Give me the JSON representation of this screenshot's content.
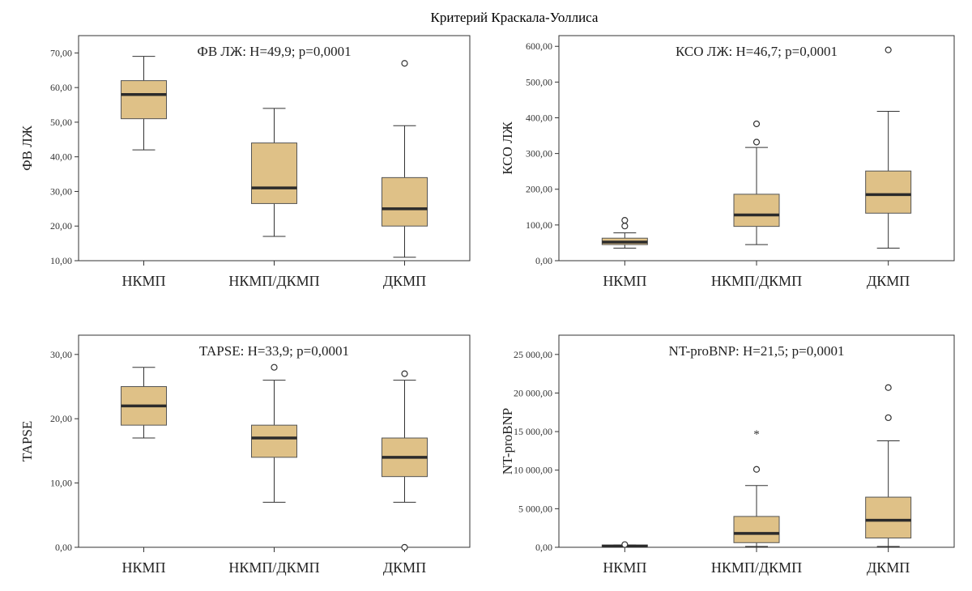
{
  "figure_title": "Критерий Краскала-Уоллиса",
  "chart_data": [
    {
      "type": "box",
      "title": "ФВ ЛЖ: H=49,9; p=0,0001",
      "ylabel": "ФВ ЛЖ",
      "xlabel": "",
      "ylim": [
        10,
        75
      ],
      "yticks": [
        10,
        20,
        30,
        40,
        50,
        60,
        70
      ],
      "ytick_labels": [
        "10,00",
        "20,00",
        "30,00",
        "40,00",
        "50,00",
        "60,00",
        "70,00"
      ],
      "categories": [
        "НКМП",
        "НКМП/ДКМП",
        "ДКМП"
      ],
      "boxes": [
        {
          "whisker_low": 42,
          "q1": 51,
          "median": 58,
          "q3": 62,
          "whisker_high": 69,
          "outliers": [],
          "extremes": []
        },
        {
          "whisker_low": 17,
          "q1": 26.5,
          "median": 31,
          "q3": 44,
          "whisker_high": 54,
          "outliers": [],
          "extremes": []
        },
        {
          "whisker_low": 11,
          "q1": 20,
          "median": 25,
          "q3": 34,
          "whisker_high": 49,
          "outliers": [
            67
          ],
          "extremes": []
        }
      ],
      "box_color": "#dfc187",
      "grid": false
    },
    {
      "type": "box",
      "title": "КСО ЛЖ: H=46,7; p=0,0001",
      "ylabel": "КСО ЛЖ",
      "xlabel": "",
      "ylim": [
        0,
        630
      ],
      "yticks": [
        0,
        100,
        200,
        300,
        400,
        500,
        600
      ],
      "ytick_labels": [
        "0,00",
        "100,00",
        "200,00",
        "300,00",
        "400,00",
        "500,00",
        "600,00"
      ],
      "categories": [
        "НКМП",
        "НКМП/ДКМП",
        "ДКМП"
      ],
      "boxes": [
        {
          "whisker_low": 35,
          "q1": 45,
          "median": 52,
          "q3": 63,
          "whisker_high": 78,
          "outliers": [
            97,
            113
          ],
          "extremes": []
        },
        {
          "whisker_low": 45,
          "q1": 96,
          "median": 128,
          "q3": 186,
          "whisker_high": 317,
          "outliers": [
            332,
            383
          ],
          "extremes": []
        },
        {
          "whisker_low": 35,
          "q1": 133,
          "median": 185,
          "q3": 251,
          "whisker_high": 418,
          "outliers": [
            590
          ],
          "extremes": []
        }
      ],
      "box_color": "#dfc187",
      "grid": false
    },
    {
      "type": "box",
      "title": "TAPSE: H=33,9; p=0,0001",
      "ylabel": "TAPSE",
      "xlabel": "",
      "ylim": [
        0,
        33
      ],
      "yticks": [
        0,
        10,
        20,
        30
      ],
      "ytick_labels": [
        "0,00",
        "10,00",
        "20,00",
        "30,00"
      ],
      "categories": [
        "НКМП",
        "НКМП/ДКМП",
        "ДКМП"
      ],
      "boxes": [
        {
          "whisker_low": 17,
          "q1": 19,
          "median": 22,
          "q3": 25,
          "whisker_high": 28,
          "outliers": [],
          "extremes": []
        },
        {
          "whisker_low": 7,
          "q1": 14,
          "median": 17,
          "q3": 19,
          "whisker_high": 26,
          "outliers": [
            28
          ],
          "extremes": []
        },
        {
          "whisker_low": 7,
          "q1": 11,
          "median": 14,
          "q3": 17,
          "whisker_high": 26,
          "outliers": [
            27,
            0
          ],
          "extremes": []
        }
      ],
      "box_color": "#dfc187",
      "grid": false
    },
    {
      "type": "box",
      "title": "NT-proBNP: H=21,5; p=0,0001",
      "ylabel": "NT-proBNP",
      "xlabel": "",
      "ylim": [
        0,
        27500
      ],
      "yticks": [
        0,
        5000,
        10000,
        15000,
        20000,
        25000
      ],
      "ytick_labels": [
        "0,00",
        "5 000,00",
        "10 000,00",
        "15 000,00",
        "20 000,00",
        "25 000,00"
      ],
      "categories": [
        "НКМП",
        "НКМП/ДКМП",
        "ДКМП"
      ],
      "boxes": [
        {
          "whisker_low": 0,
          "q1": 50,
          "median": 150,
          "q3": 300,
          "whisker_high": 300,
          "outliers": [
            350
          ],
          "extremes": []
        },
        {
          "whisker_low": 100,
          "q1": 600,
          "median": 1800,
          "q3": 4000,
          "whisker_high": 8000,
          "outliers": [
            10100
          ],
          "extremes": [
            14900
          ]
        },
        {
          "whisker_low": 100,
          "q1": 1200,
          "median": 3500,
          "q3": 6500,
          "whisker_high": 13800,
          "outliers": [
            16800,
            20700
          ],
          "extremes": []
        }
      ],
      "box_color": "#dfc187",
      "grid": false
    }
  ]
}
